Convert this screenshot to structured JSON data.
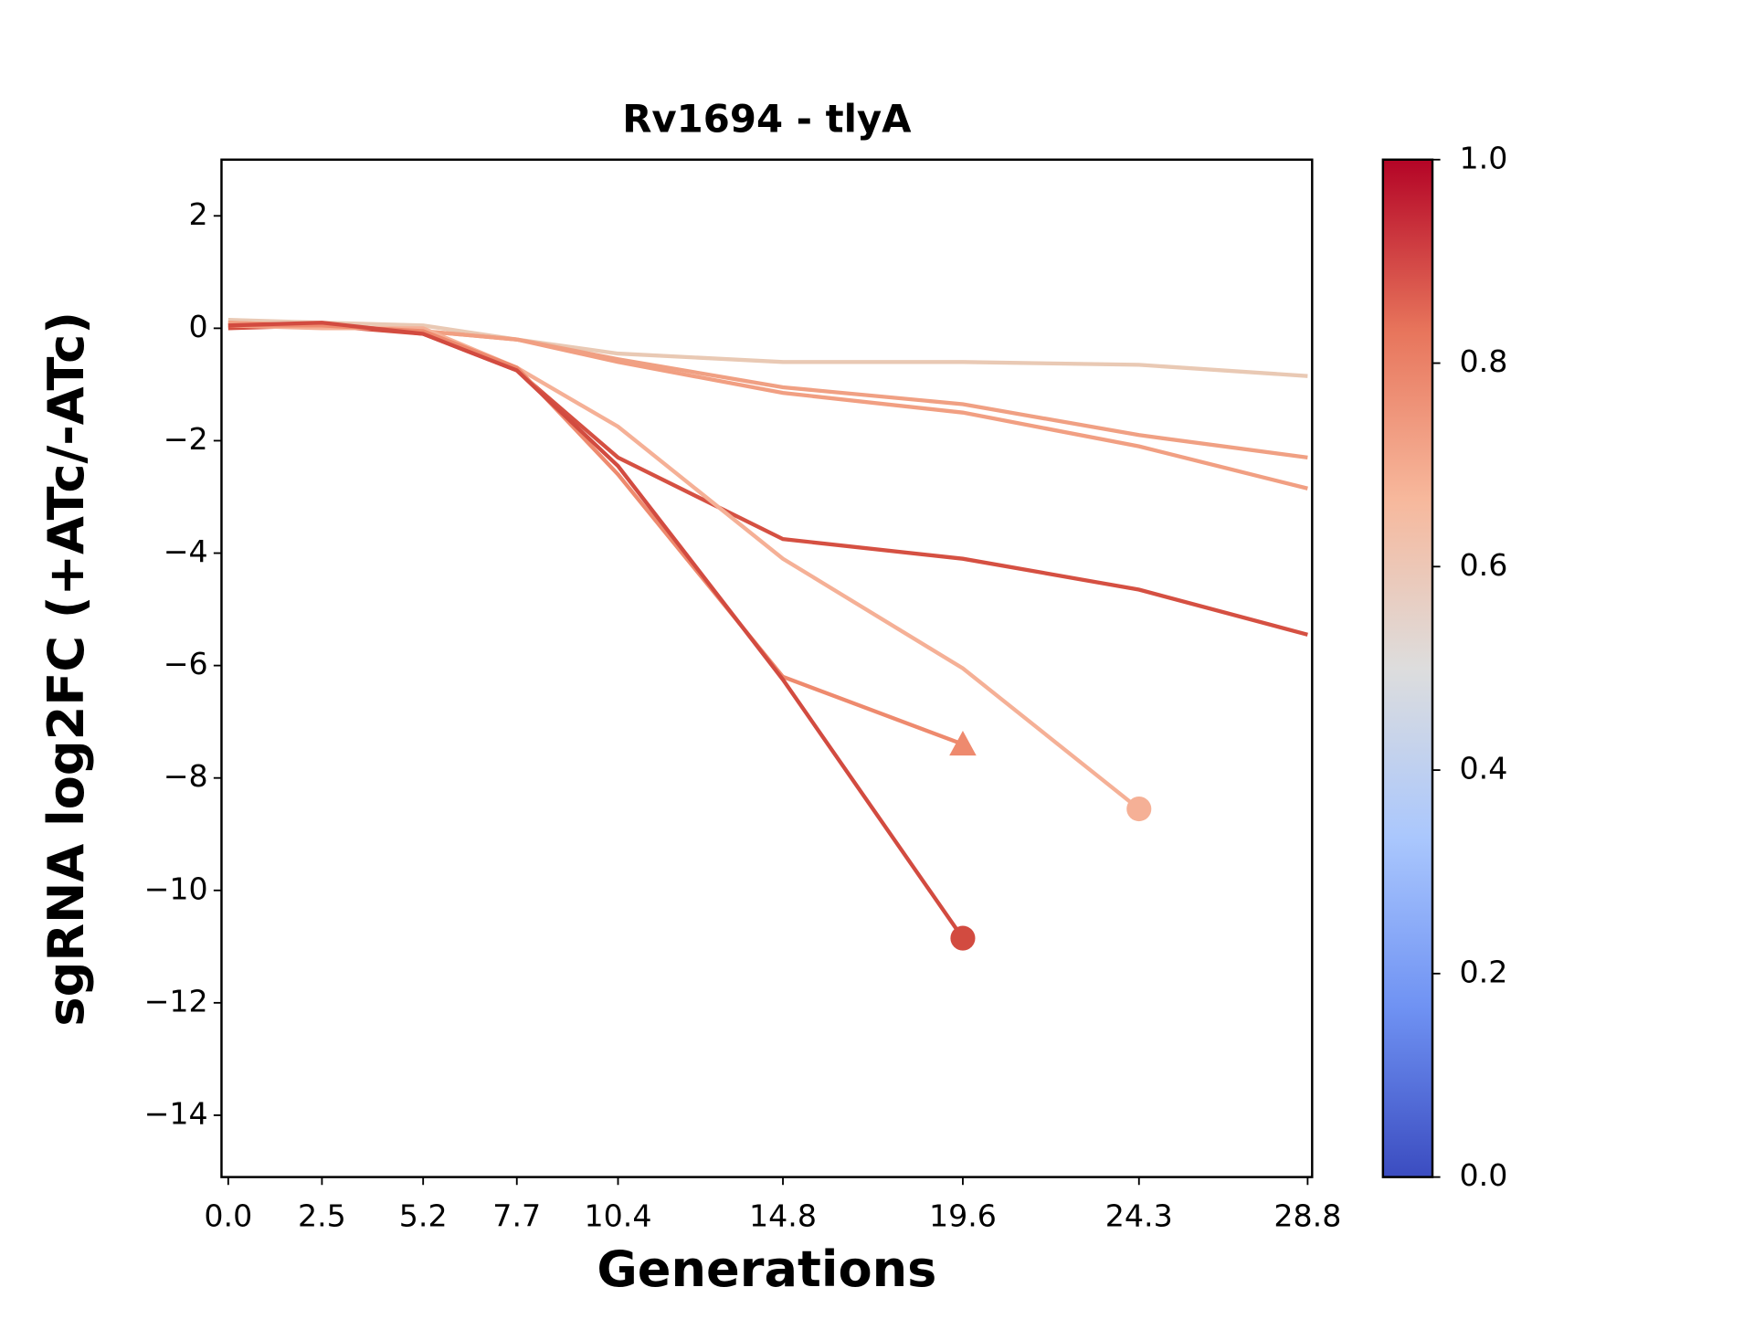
{
  "chart_data": {
    "type": "line",
    "title": "Rv1694 - tlyA",
    "xlabel": "Generations",
    "ylabel": "sgRNA log2FC (+ATc/-ATc)",
    "x": [
      0,
      2.5,
      5.2,
      7.7,
      10.4,
      14.8,
      19.6,
      24.3,
      28.8
    ],
    "xlim": [
      -0.18,
      28.92
    ],
    "xticks": [
      {
        "value": 0,
        "label": "0.0"
      },
      2.5,
      5.2,
      7.7,
      10.4,
      14.8,
      19.6,
      24.3,
      28.8
    ],
    "ylim": [
      -15.1,
      3
    ],
    "yticks": [
      {
        "value": -14,
        "label": "−14"
      },
      {
        "value": -12,
        "label": "−12"
      },
      {
        "value": -10,
        "label": "−10"
      },
      {
        "value": -8,
        "label": "−8"
      },
      {
        "value": -6,
        "label": "−6"
      },
      {
        "value": -4,
        "label": "−4"
      },
      {
        "value": -2,
        "label": "−2"
      },
      0,
      2
    ],
    "series": [
      {
        "color": "#e9c9b4",
        "values": [
          0.15,
          0.1,
          0.05,
          -0.2,
          -0.45,
          -0.6,
          -0.6,
          -0.65,
          -0.85
        ]
      },
      {
        "color": "#f0a083",
        "values": [
          0.1,
          0.05,
          -0.05,
          -0.2,
          -0.55,
          -1.05,
          -1.35,
          -1.9,
          -2.3
        ]
      },
      {
        "color": "#f19f82",
        "values": [
          0.1,
          0.05,
          -0.05,
          -0.2,
          -0.6,
          -1.15,
          -1.5,
          -2.1,
          -2.85
        ]
      },
      {
        "color": "#d55042",
        "values": [
          0.0,
          0.05,
          -0.1,
          -0.75,
          -2.3,
          -3.75,
          -4.1,
          -4.65,
          -5.45
        ]
      },
      {
        "color": "#f5b096",
        "marker": "circle",
        "values": [
          0.05,
          0.0,
          0.0,
          -0.7,
          -1.75,
          -4.1,
          -6.05,
          -8.55,
          null
        ]
      },
      {
        "color": "#ee8a6e",
        "marker": "triangle",
        "values": [
          0.05,
          0.05,
          -0.05,
          -0.7,
          -2.6,
          -6.2,
          -7.4,
          null,
          null
        ]
      },
      {
        "color": "#d24b40",
        "marker": "circle",
        "values": [
          0.05,
          0.1,
          -0.1,
          -0.75,
          -2.45,
          -6.25,
          -10.85,
          null,
          null
        ]
      }
    ],
    "colorbar": {
      "lim": [
        0,
        1
      ],
      "colors": [
        "#3b4cc0",
        "#6f92f3",
        "#aac7fd",
        "#dddddd",
        "#f7b89c",
        "#e7745b",
        "#b40426"
      ],
      "ticks": [
        {
          "value": 0,
          "label": "0.0"
        },
        0.2,
        0.4,
        0.6,
        0.8,
        {
          "value": 1,
          "label": "1.0"
        }
      ]
    }
  }
}
